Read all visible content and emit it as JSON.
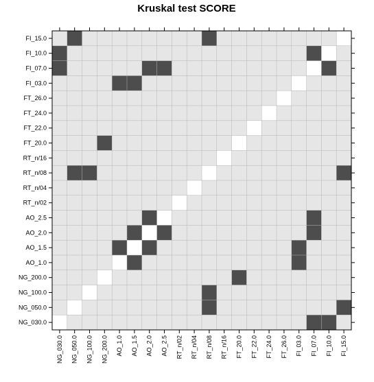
{
  "chart_data": {
    "type": "heatmap",
    "title": "Kruskal test SCORE",
    "x_labels": [
      "NG_030.0",
      "NG_050.0",
      "NG_100.0",
      "NG_200.0",
      "AO_1.0",
      "AO_1.5",
      "AO_2.0",
      "AO_2.5",
      "RT_n/02",
      "RT_n/04",
      "RT_n/08",
      "RT_n/16",
      "FT_20.0",
      "FT_22.0",
      "FT_24.0",
      "FT_26.0",
      "FI_03.0",
      "FI_07.0",
      "FI_10.0",
      "FI_15.0"
    ],
    "y_labels_top_to_bottom": [
      "FI_15.0",
      "FI_10.0",
      "FI_07.0",
      "FI_03.0",
      "FT_26.0",
      "FT_24.0",
      "FT_22.0",
      "FT_20.0",
      "RT_n/16",
      "RT_n/08",
      "RT_n/04",
      "RT_n/02",
      "AO_2.5",
      "AO_2.0",
      "AO_1.5",
      "AO_1.0",
      "NG_200.0",
      "NG_100.0",
      "NG_050.0",
      "NG_030.0"
    ],
    "value_legend": {
      "0": "no significant difference",
      "1": "significant difference",
      "diagonal": "self comparison"
    },
    "colors": {
      "background": "#e6e6e6",
      "significant": "#4d4d4d",
      "diagonal": "#ffffff",
      "grid": "#b3b3b3",
      "frame": "#000000"
    },
    "significant_pairs": [
      [
        "NG_050.0",
        "FI_15.0"
      ],
      [
        "RT_n/08",
        "FI_15.0"
      ],
      [
        "NG_030.0",
        "FI_10.0"
      ],
      [
        "FI_07.0",
        "FI_10.0"
      ],
      [
        "NG_030.0",
        "FI_07.0"
      ],
      [
        "AO_2.0",
        "FI_07.0"
      ],
      [
        "AO_2.5",
        "FI_07.0"
      ],
      [
        "FI_10.0",
        "FI_07.0"
      ],
      [
        "AO_1.0",
        "FI_03.0"
      ],
      [
        "AO_1.5",
        "FI_03.0"
      ],
      [
        "NG_200.0",
        "FT_20.0"
      ],
      [
        "NG_050.0",
        "RT_n/08"
      ],
      [
        "NG_100.0",
        "RT_n/08"
      ],
      [
        "FI_15.0",
        "RT_n/08"
      ],
      [
        "AO_2.0",
        "AO_2.5"
      ],
      [
        "FI_07.0",
        "AO_2.5"
      ],
      [
        "AO_1.5",
        "AO_2.0"
      ],
      [
        "AO_2.5",
        "AO_2.0"
      ],
      [
        "FI_07.0",
        "AO_2.0"
      ],
      [
        "AO_1.0",
        "AO_1.5"
      ],
      [
        "AO_2.0",
        "AO_1.5"
      ],
      [
        "FI_03.0",
        "AO_1.5"
      ],
      [
        "AO_1.5",
        "AO_1.0"
      ],
      [
        "FI_03.0",
        "AO_1.0"
      ],
      [
        "FT_20.0",
        "NG_200.0"
      ],
      [
        "RT_n/08",
        "NG_100.0"
      ],
      [
        "RT_n/08",
        "NG_050.0"
      ],
      [
        "FI_15.0",
        "NG_050.0"
      ],
      [
        "FI_07.0",
        "NG_030.0"
      ],
      [
        "FI_10.0",
        "NG_030.0"
      ]
    ],
    "grid": true
  }
}
